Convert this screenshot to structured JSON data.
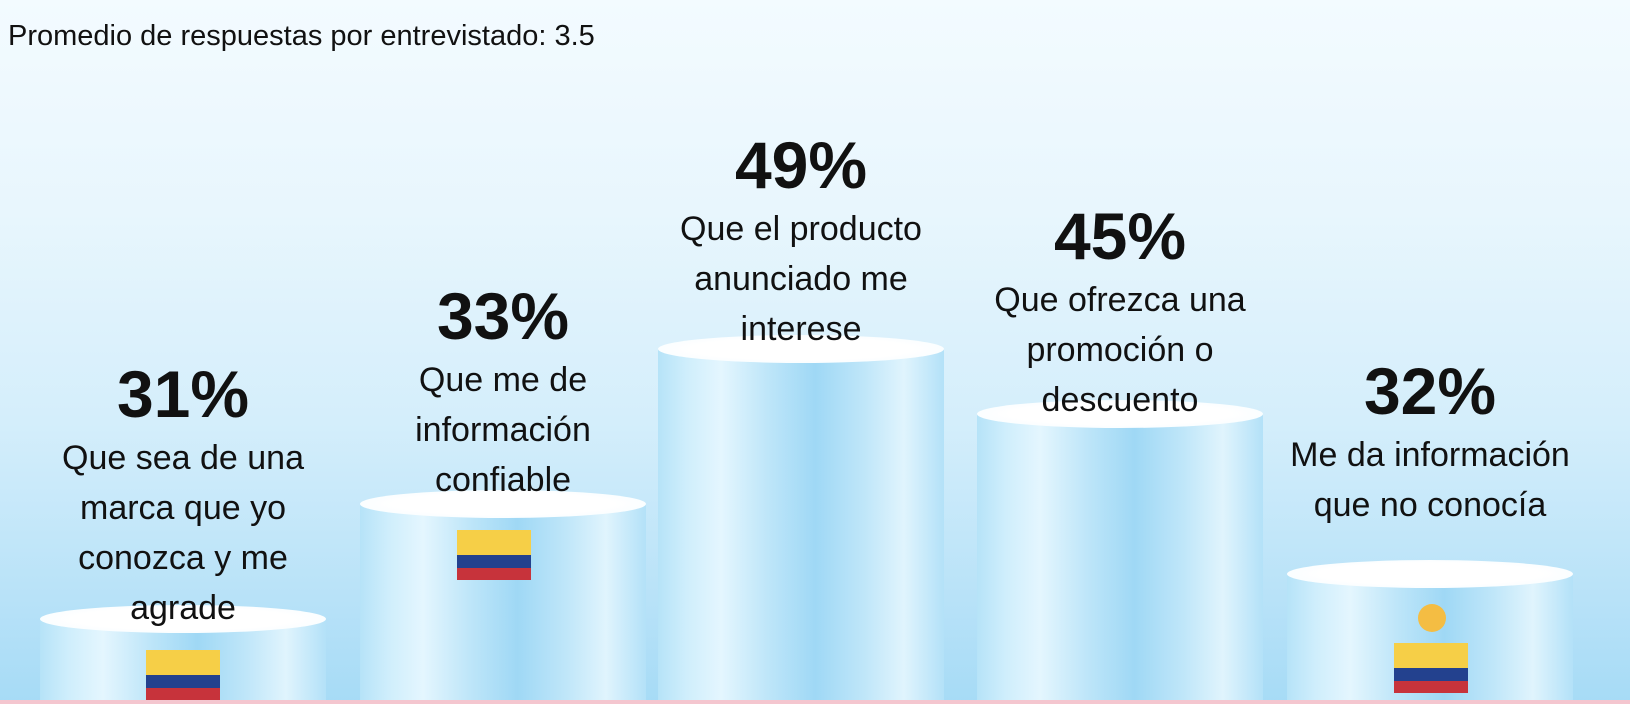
{
  "subtitle": "Promedio de respuestas por entrevistado: 3.5",
  "chart_data": {
    "type": "bar",
    "categories": [
      "Que sea de una marca que yo conozca y me agrade",
      "Que me de información confiable",
      "Que el producto anunciado me interese",
      "Que ofrezca una promoción o descuento",
      "Me da información que no conocía"
    ],
    "values": [
      31,
      33,
      49,
      45,
      32
    ],
    "value_labels": [
      "31%",
      "33%",
      "49%",
      "45%",
      "32%"
    ],
    "ylim": [
      0,
      100
    ],
    "grid": false,
    "legend": "none"
  },
  "colors": {
    "flag_yellow": "#f6cf47",
    "flag_blue": "#23418e",
    "flag_red": "#c7333b",
    "dot": "#f4bd43"
  },
  "icons": [
    "colombia-flag-icon",
    "yellow-dot-icon"
  ]
}
